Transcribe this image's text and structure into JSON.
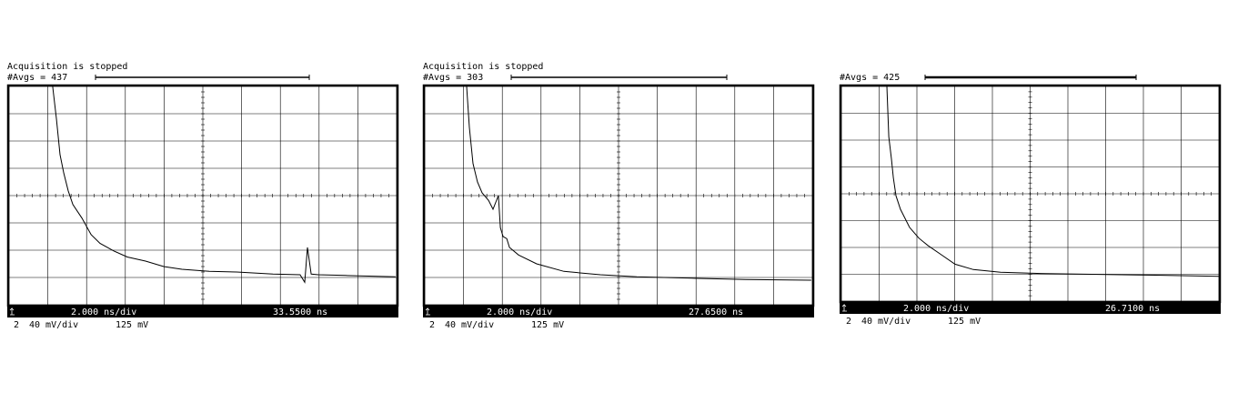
{
  "chart_data": [
    {
      "type": "line",
      "status": "Acquisition is stopped",
      "avgs": "#Avgs = 437",
      "timebase": "2.000 ns/div",
      "delay": "33.5500 ns",
      "channel": "2",
      "volts_div": "40 mV/div",
      "offset": "125 mV",
      "color": "#000000",
      "grid": true,
      "xlim": [
        0,
        20
      ],
      "ylim": [
        -35,
        285
      ],
      "xticks": [
        0,
        2,
        4,
        6,
        8,
        10,
        12,
        14,
        16,
        18,
        20
      ],
      "yticks": [
        -35,
        5,
        45,
        85,
        125,
        165,
        205,
        245,
        285
      ],
      "x": [
        2.25,
        2.44,
        2.63,
        2.82,
        3.05,
        3.29,
        3.76,
        4.23,
        4.69,
        5.4,
        6.1,
        7.04,
        7.51,
        7.98,
        8.92,
        10.33,
        11.74,
        13.62,
        15.02,
        15.26,
        15.4,
        15.59,
        15.96,
        17.37,
        19.95
      ],
      "values": [
        285,
        238,
        185,
        158,
        132,
        112,
        92,
        68,
        55,
        44,
        35,
        29,
        25,
        21,
        17,
        14,
        13,
        10,
        9,
        -2,
        49,
        10,
        9,
        8,
        6
      ]
    },
    {
      "type": "line",
      "status": "Acquisition is stopped",
      "avgs": "#Avgs = 303",
      "timebase": "2.000 ns/div",
      "delay": "27.6500 ns",
      "channel": "2",
      "volts_div": "40 mV/div",
      "offset": "125 mV",
      "color": "#000000",
      "grid": true,
      "xlim": [
        0,
        20
      ],
      "ylim": [
        -35,
        285
      ],
      "xticks": [
        0,
        2,
        4,
        6,
        8,
        10,
        12,
        14,
        16,
        18,
        20
      ],
      "yticks": [
        -35,
        5,
        45,
        85,
        125,
        165,
        205,
        245,
        285
      ],
      "x": [
        2.16,
        2.3,
        2.49,
        2.72,
        2.96,
        3.29,
        3.52,
        3.8,
        3.9,
        4.04,
        4.23,
        4.37,
        4.84,
        5.77,
        7.18,
        9.06,
        10.94,
        13.76,
        16.57,
        19.95
      ],
      "values": [
        285,
        225,
        172,
        145,
        129,
        118,
        105,
        125,
        78,
        65,
        62,
        49,
        38,
        25,
        14,
        9,
        6,
        4,
        2,
        1
      ]
    },
    {
      "type": "line",
      "avgs": "#Avgs = 425",
      "timebase": "2.000 ns/div",
      "delay": "26.7100 ns",
      "channel": "2",
      "volts_div": "40 mV/div",
      "offset": "125 mV",
      "color": "#000000",
      "grid": true,
      "xlim": [
        0,
        20
      ],
      "ylim": [
        -35,
        285
      ],
      "xticks": [
        0,
        2,
        4,
        6,
        8,
        10,
        12,
        14,
        16,
        18,
        20
      ],
      "yticks": [
        -35,
        5,
        45,
        85,
        125,
        165,
        205,
        245,
        285
      ],
      "x": [
        2.41,
        2.51,
        2.65,
        2.75,
        2.89,
        3.13,
        3.61,
        4.1,
        4.58,
        5.3,
        6.02,
        6.99,
        8.43,
        10.84,
        15.66,
        20
      ],
      "values": [
        285,
        210,
        177,
        149,
        122,
        102,
        75,
        59,
        48,
        34,
        20,
        12,
        8,
        6,
        4,
        2
      ]
    }
  ]
}
